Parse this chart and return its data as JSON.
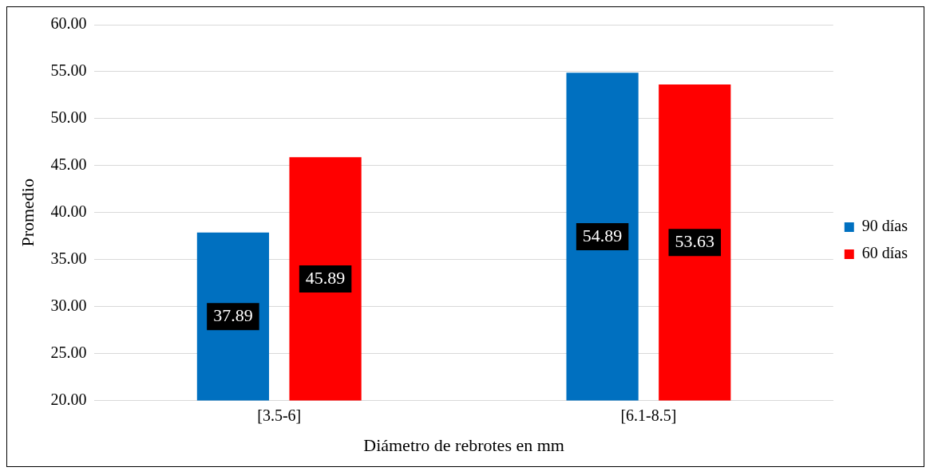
{
  "chart_data": {
    "type": "bar",
    "xlabel": "Diámetro de rebrotes en mm",
    "ylabel": "Promedio",
    "categories": [
      "[3.5-6]",
      "[6.1-8.5]"
    ],
    "series": [
      {
        "name": "90 días",
        "color": "#0070c0",
        "values": [
          37.89,
          54.89
        ]
      },
      {
        "name": "60 días",
        "color": "#ff0000",
        "values": [
          45.89,
          53.63
        ]
      }
    ],
    "ylim": [
      20,
      60
    ],
    "yticks": [
      {
        "value": 20,
        "label": "20.00"
      },
      {
        "value": 25,
        "label": "25.00"
      },
      {
        "value": 30,
        "label": "30.00"
      },
      {
        "value": 35,
        "label": "35.00"
      },
      {
        "value": 40,
        "label": "40.00"
      },
      {
        "value": 45,
        "label": "45.00"
      },
      {
        "value": 50,
        "label": "50.00"
      },
      {
        "value": 55,
        "label": "55.00"
      },
      {
        "value": 60,
        "label": "60.00"
      }
    ],
    "grid": "y",
    "legend": "right",
    "data_labels": true
  }
}
